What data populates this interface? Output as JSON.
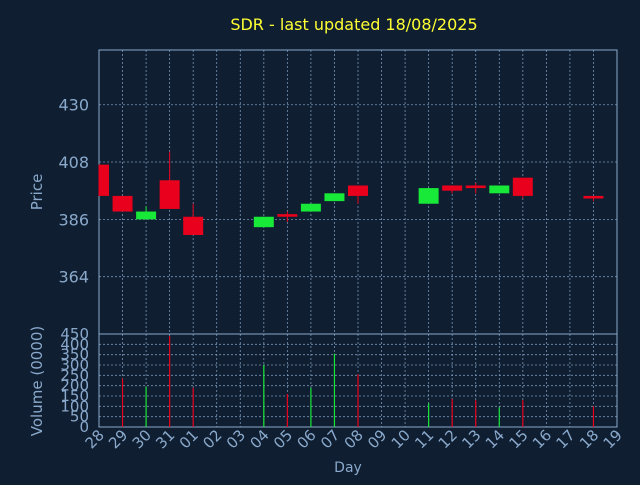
{
  "colors": {
    "background": "#0f1e30",
    "text": "#8aa9cc",
    "title": "#ffff33",
    "up": "#18e838",
    "down": "#e8001c",
    "grid": "#8aa9cc"
  },
  "chart_data": [
    {
      "type": "candlestick",
      "title": "SDR - last updated 18/08/2025",
      "ylabel": "Price",
      "ylim": [
        342,
        451
      ],
      "yticks": [
        364,
        386,
        408,
        430
      ],
      "grid": true,
      "categories": [
        "28",
        "29",
        "30",
        "31",
        "01",
        "02",
        "03",
        "04",
        "05",
        "06",
        "07",
        "08",
        "09",
        "10",
        "11",
        "12",
        "13",
        "14",
        "15",
        "16",
        "17",
        "18",
        "19"
      ],
      "candles": [
        {
          "day": "28",
          "open": 407,
          "high": 407,
          "low": 395,
          "close": 395
        },
        {
          "day": "29",
          "open": 395,
          "high": 395,
          "low": 389,
          "close": 389
        },
        {
          "day": "30",
          "open": 386,
          "high": 391,
          "low": 386,
          "close": 389
        },
        {
          "day": "31",
          "open": 401,
          "high": 412,
          "low": 390,
          "close": 390
        },
        {
          "day": "01",
          "open": 387,
          "high": 392,
          "low": 380,
          "close": 380
        },
        {
          "day": "04",
          "open": 383,
          "high": 387,
          "low": 383,
          "close": 387
        },
        {
          "day": "05",
          "open": 388,
          "high": 389,
          "low": 385,
          "close": 387
        },
        {
          "day": "06",
          "open": 389,
          "high": 392,
          "low": 389,
          "close": 392
        },
        {
          "day": "07",
          "open": 393,
          "high": 396,
          "low": 393,
          "close": 396
        },
        {
          "day": "08",
          "open": 399,
          "high": 399,
          "low": 392,
          "close": 395
        },
        {
          "day": "11",
          "open": 392,
          "high": 398,
          "low": 392,
          "close": 398
        },
        {
          "day": "12",
          "open": 399,
          "high": 399,
          "low": 396,
          "close": 397
        },
        {
          "day": "13",
          "open": 399,
          "high": 400,
          "low": 396,
          "close": 398
        },
        {
          "day": "14",
          "open": 396,
          "high": 399,
          "low": 396,
          "close": 399
        },
        {
          "day": "15",
          "open": 402,
          "high": 402,
          "low": 394,
          "close": 395
        },
        {
          "day": "18",
          "open": 395,
          "high": 395,
          "low": 393,
          "close": 394
        }
      ]
    },
    {
      "type": "bar",
      "ylabel": "Volume (0000)",
      "xlabel": "Day",
      "ylim": [
        0,
        450
      ],
      "yticks": [
        0,
        50,
        100,
        150,
        200,
        250,
        300,
        350,
        400,
        450
      ],
      "grid": true,
      "categories": [
        "28",
        "29",
        "30",
        "31",
        "01",
        "02",
        "03",
        "04",
        "05",
        "06",
        "07",
        "08",
        "09",
        "10",
        "11",
        "12",
        "13",
        "14",
        "15",
        "16",
        "17",
        "18",
        "19"
      ],
      "values": [
        0,
        235,
        195,
        440,
        190,
        0,
        0,
        300,
        160,
        190,
        355,
        255,
        0,
        0,
        115,
        135,
        130,
        95,
        130,
        0,
        0,
        100,
        0
      ],
      "direction": [
        "",
        "down",
        "up",
        "down",
        "down",
        "",
        "",
        "up",
        "down",
        "up",
        "up",
        "down",
        "",
        "",
        "up",
        "down",
        "down",
        "up",
        "down",
        "",
        "",
        "down",
        ""
      ]
    }
  ]
}
